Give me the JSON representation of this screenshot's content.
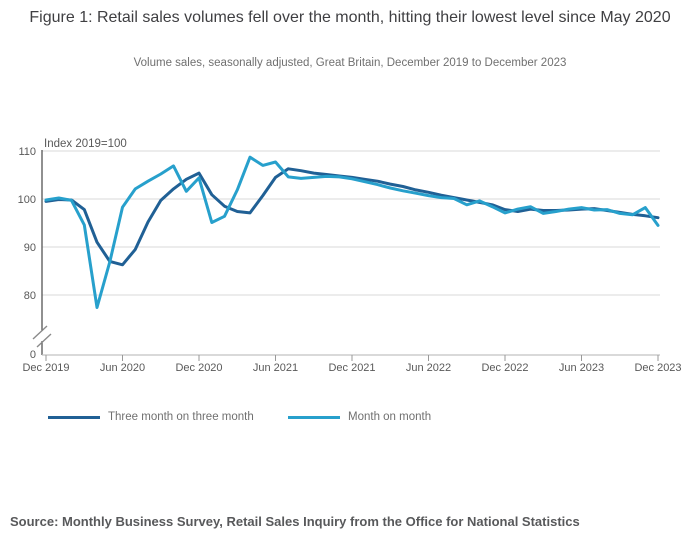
{
  "header": {
    "title": "Figure 1: Retail sales volumes fell over the month, hitting their lowest level since May 2020",
    "subtitle": "Volume sales, seasonally adjusted, Great Britain, December 2019 to December 2023"
  },
  "chart_data": {
    "type": "line",
    "title": "Figure 1: Retail sales volumes fell over the month, hitting their lowest level since May 2020",
    "subtitle": "Volume sales, seasonally adjusted, Great Britain, December 2019 to December 2023",
    "unit_label": "Index 2019=100",
    "x_start": "Dec 2019",
    "x_end": "Dec 2023",
    "x_frequency": "monthly",
    "n_points": 49,
    "x_tick_labels": [
      "Dec 2019",
      "Jun 2020",
      "Dec 2020",
      "Jun 2021",
      "Dec 2021",
      "Jun 2022",
      "Dec 2022",
      "Jun 2023",
      "Dec 2023"
    ],
    "y_ticks": [
      0,
      80,
      90,
      100,
      110
    ],
    "y_gridline_values": [
      80,
      90,
      100,
      110
    ],
    "y_axis_break": true,
    "ylim_main": [
      76,
      110
    ],
    "grid": "horizontal",
    "legend_position": "bottom",
    "series": [
      {
        "name": "Three month on three month",
        "color": "#206095",
        "values": [
          99.5,
          99.9,
          99.8,
          97.8,
          91.0,
          87.0,
          86.3,
          89.5,
          95.2,
          99.7,
          102.1,
          104.1,
          105.4,
          100.9,
          98.5,
          97.4,
          97.1,
          100.7,
          104.5,
          106.3,
          105.9,
          105.4,
          105.1,
          104.8,
          104.5,
          104.1,
          103.7,
          103.1,
          102.6,
          101.9,
          101.4,
          100.8,
          100.3,
          99.8,
          99.3,
          98.8,
          97.8,
          97.4,
          97.9,
          97.6,
          97.6,
          97.7,
          97.9,
          98.0,
          97.6,
          97.2,
          96.8,
          96.5,
          96.1
        ]
      },
      {
        "name": "Month on month",
        "color": "#27A0CC",
        "values": [
          99.8,
          100.2,
          99.7,
          94.6,
          77.4,
          86.9,
          98.3,
          102.1,
          103.7,
          105.2,
          106.9,
          101.6,
          104.4,
          95.1,
          96.4,
          101.9,
          108.7,
          107.0,
          107.7,
          104.6,
          104.3,
          104.5,
          104.7,
          104.6,
          104.2,
          103.6,
          103.0,
          102.3,
          101.7,
          101.2,
          100.7,
          100.3,
          100.1,
          98.8,
          99.6,
          98.4,
          97.1,
          97.9,
          98.4,
          97.0,
          97.4,
          97.9,
          98.2,
          97.7,
          97.8,
          97.0,
          96.7,
          98.2,
          94.5
        ]
      }
    ]
  },
  "legend": {
    "items": [
      {
        "label": "Three month on three month",
        "color": "#206095"
      },
      {
        "label": "Month on month",
        "color": "#27A0CC"
      }
    ]
  },
  "source": "Source: Monthly Business Survey, Retail Sales Inquiry from the Office for National Statistics",
  "colors": {
    "title": "#3f3f42",
    "subtitle": "#707070",
    "axis_text": "#595959",
    "gridline": "#d9d9d9",
    "y_axis_line": "#555555",
    "x_axis_line": "#c2c2c2",
    "tick": "#999999"
  }
}
